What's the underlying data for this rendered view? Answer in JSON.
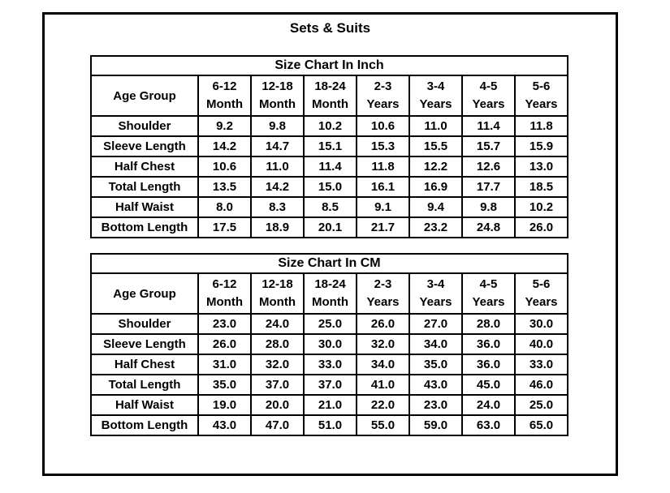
{
  "page": {
    "title": "Sets & Suits"
  },
  "chart_data": [
    {
      "type": "table",
      "title": "Size Chart In Inch",
      "corner_label": "Age Group",
      "columns": [
        {
          "line1": "6-12",
          "line2": "Month"
        },
        {
          "line1": "12-18",
          "line2": "Month"
        },
        {
          "line1": "18-24",
          "line2": "Month"
        },
        {
          "line1": "2-3",
          "line2": "Years"
        },
        {
          "line1": "3-4",
          "line2": "Years"
        },
        {
          "line1": "4-5",
          "line2": "Years"
        },
        {
          "line1": "5-6",
          "line2": "Years"
        }
      ],
      "rows": [
        {
          "label": "Shoulder",
          "values": [
            "9.2",
            "9.8",
            "10.2",
            "10.6",
            "11.0",
            "11.4",
            "11.8"
          ]
        },
        {
          "label": "Sleeve Length",
          "values": [
            "14.2",
            "14.7",
            "15.1",
            "15.3",
            "15.5",
            "15.7",
            "15.9"
          ]
        },
        {
          "label": "Half Chest",
          "values": [
            "10.6",
            "11.0",
            "11.4",
            "11.8",
            "12.2",
            "12.6",
            "13.0"
          ]
        },
        {
          "label": "Total Length",
          "values": [
            "13.5",
            "14.2",
            "15.0",
            "16.1",
            "16.9",
            "17.7",
            "18.5"
          ]
        },
        {
          "label": "Half Waist",
          "values": [
            "8.0",
            "8.3",
            "8.5",
            "9.1",
            "9.4",
            "9.8",
            "10.2"
          ]
        },
        {
          "label": "Bottom Length",
          "values": [
            "17.5",
            "18.9",
            "20.1",
            "21.7",
            "23.2",
            "24.8",
            "26.0"
          ]
        }
      ]
    },
    {
      "type": "table",
      "title": "Size Chart In CM",
      "corner_label": "Age Group",
      "columns": [
        {
          "line1": "6-12",
          "line2": "Month"
        },
        {
          "line1": "12-18",
          "line2": "Month"
        },
        {
          "line1": "18-24",
          "line2": "Month"
        },
        {
          "line1": "2-3",
          "line2": "Years"
        },
        {
          "line1": "3-4",
          "line2": "Years"
        },
        {
          "line1": "4-5",
          "line2": "Years"
        },
        {
          "line1": "5-6",
          "line2": "Years"
        }
      ],
      "rows": [
        {
          "label": "Shoulder",
          "values": [
            "23.0",
            "24.0",
            "25.0",
            "26.0",
            "27.0",
            "28.0",
            "30.0"
          ]
        },
        {
          "label": "Sleeve Length",
          "values": [
            "26.0",
            "28.0",
            "30.0",
            "32.0",
            "34.0",
            "36.0",
            "40.0"
          ]
        },
        {
          "label": "Half Chest",
          "values": [
            "31.0",
            "32.0",
            "33.0",
            "34.0",
            "35.0",
            "36.0",
            "33.0"
          ]
        },
        {
          "label": "Total Length",
          "values": [
            "35.0",
            "37.0",
            "37.0",
            "41.0",
            "43.0",
            "45.0",
            "46.0"
          ]
        },
        {
          "label": "Half Waist",
          "values": [
            "19.0",
            "20.0",
            "21.0",
            "22.0",
            "23.0",
            "24.0",
            "25.0"
          ]
        },
        {
          "label": "Bottom Length",
          "values": [
            "43.0",
            "47.0",
            "51.0",
            "55.0",
            "59.0",
            "63.0",
            "65.0"
          ]
        }
      ]
    }
  ],
  "colors": {
    "text": "#000000",
    "border": "#000000",
    "background": "#ffffff"
  }
}
